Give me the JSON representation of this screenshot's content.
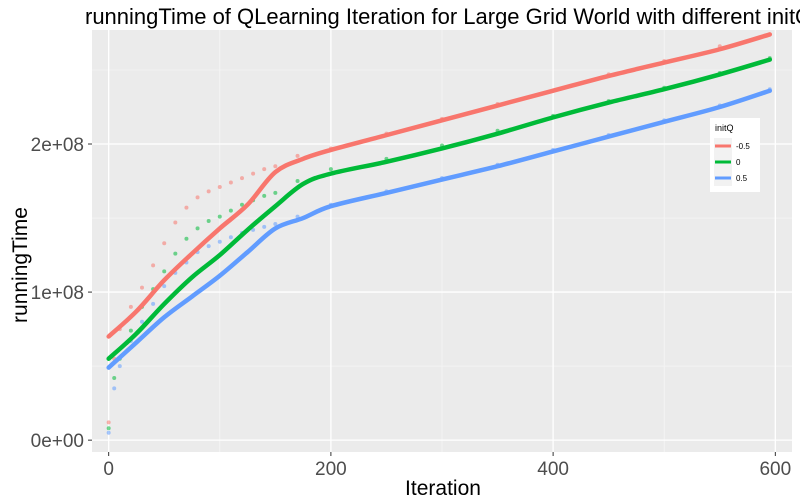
{
  "chart_data": {
    "type": "line",
    "title": "runningTime of QLearning Iteration for Large Grid World with different initQ",
    "xlabel": "Iteration",
    "ylabel": "runningTime",
    "xlim": [
      -15,
      615
    ],
    "ylim": [
      -8000000,
      277000000
    ],
    "x_ticks": [
      0,
      200,
      400,
      600
    ],
    "x_tick_labels": [
      "0",
      "200",
      "400",
      "600"
    ],
    "y_ticks": [
      0,
      100000000,
      200000000
    ],
    "y_tick_labels": [
      "0e+00",
      "1e+08",
      "2e+08"
    ],
    "grid": true,
    "legend": {
      "title": "initQ",
      "position": "right"
    },
    "series": [
      {
        "name": "-0.5",
        "color": "#F8766D",
        "smooth": {
          "x": [
            0,
            25,
            50,
            75,
            100,
            125,
            150,
            175,
            200,
            250,
            300,
            350,
            400,
            450,
            500,
            550,
            595
          ],
          "y": [
            70000000,
            87000000,
            108000000,
            126000000,
            143000000,
            159000000,
            181000000,
            190000000,
            196000000,
            206000000,
            216000000,
            226000000,
            236000000,
            246000000,
            255000000,
            264000000,
            274000000
          ]
        },
        "points": {
          "x": [
            0,
            5,
            10,
            20,
            30,
            40,
            50,
            60,
            70,
            80,
            90,
            100,
            110,
            120,
            130,
            140,
            150,
            170,
            200,
            250,
            300,
            350,
            400,
            450,
            500,
            550,
            595
          ],
          "y": [
            12000000,
            55000000,
            75000000,
            90000000,
            103000000,
            118000000,
            133000000,
            147000000,
            157000000,
            164000000,
            168000000,
            171000000,
            174000000,
            177000000,
            180000000,
            183000000,
            185000000,
            192000000,
            197000000,
            207000000,
            217000000,
            227000000,
            236000000,
            247000000,
            256000000,
            266000000,
            274000000
          ]
        }
      },
      {
        "name": "0",
        "color": "#00BA38",
        "smooth": {
          "x": [
            0,
            25,
            50,
            75,
            100,
            125,
            150,
            175,
            200,
            250,
            300,
            350,
            400,
            450,
            500,
            550,
            595
          ],
          "y": [
            55000000,
            72000000,
            92000000,
            110000000,
            125000000,
            142000000,
            158000000,
            173000000,
            180000000,
            188000000,
            197000000,
            207000000,
            218000000,
            228000000,
            237000000,
            247000000,
            257000000
          ]
        },
        "points": {
          "x": [
            0,
            5,
            10,
            20,
            30,
            40,
            50,
            60,
            70,
            80,
            90,
            100,
            110,
            120,
            130,
            140,
            150,
            170,
            200,
            250,
            300,
            350,
            400,
            450,
            500,
            550,
            595
          ],
          "y": [
            8000000,
            42000000,
            55000000,
            74000000,
            90000000,
            102000000,
            114000000,
            126000000,
            136000000,
            143000000,
            148000000,
            151000000,
            155000000,
            159000000,
            162000000,
            165000000,
            167000000,
            175000000,
            183000000,
            190000000,
            199000000,
            209000000,
            219000000,
            229000000,
            238000000,
            248000000,
            258000000
          ]
        }
      },
      {
        "name": "0.5",
        "color": "#619CFF",
        "smooth": {
          "x": [
            0,
            25,
            50,
            75,
            100,
            125,
            150,
            175,
            200,
            250,
            300,
            350,
            400,
            450,
            500,
            550,
            595
          ],
          "y": [
            49000000,
            66000000,
            83000000,
            97000000,
            111000000,
            127000000,
            143000000,
            150000000,
            158000000,
            167000000,
            176000000,
            185000000,
            195000000,
            205000000,
            215000000,
            225000000,
            236000000
          ]
        },
        "points": {
          "x": [
            0,
            5,
            10,
            20,
            30,
            40,
            50,
            60,
            70,
            80,
            90,
            100,
            110,
            120,
            130,
            140,
            150,
            170,
            200,
            250,
            300,
            350,
            400,
            450,
            500,
            550,
            595
          ],
          "y": [
            5000000,
            35000000,
            50000000,
            67000000,
            80000000,
            92000000,
            104000000,
            113000000,
            120000000,
            127000000,
            131000000,
            134000000,
            137000000,
            140000000,
            142000000,
            144000000,
            146000000,
            151000000,
            159000000,
            168000000,
            177000000,
            186000000,
            196000000,
            206000000,
            216000000,
            226000000,
            237000000
          ]
        }
      }
    ]
  }
}
